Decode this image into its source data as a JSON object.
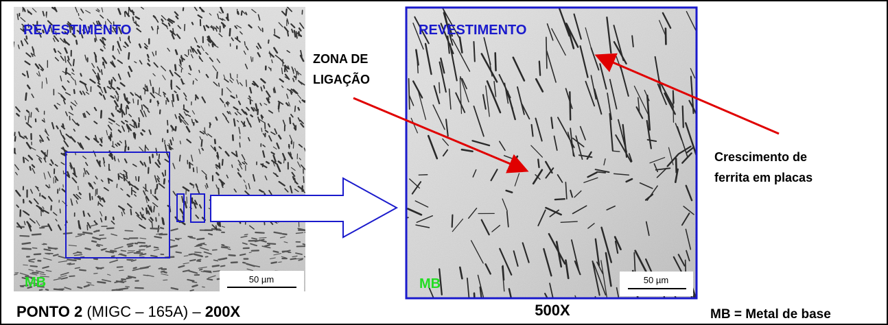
{
  "left_panel": {
    "label_top": "REVESTIMENTO",
    "label_bottom": "MB",
    "scale_bar": "50 µm",
    "caption": {
      "point": "PONTO 2",
      "process": "(MIGC – 165A) –",
      "magnification": "200X"
    }
  },
  "right_panel": {
    "label_top": "REVESTIMENTO",
    "label_bottom": "MB",
    "scale_bar": "50 µm",
    "caption": "500X"
  },
  "annotations": {
    "bond_zone": [
      "ZONA DE",
      "LIGAÇÃO"
    ],
    "ferrite": [
      "Crescimento de",
      "ferrita em placas"
    ]
  },
  "legend": "MB = Metal de base"
}
